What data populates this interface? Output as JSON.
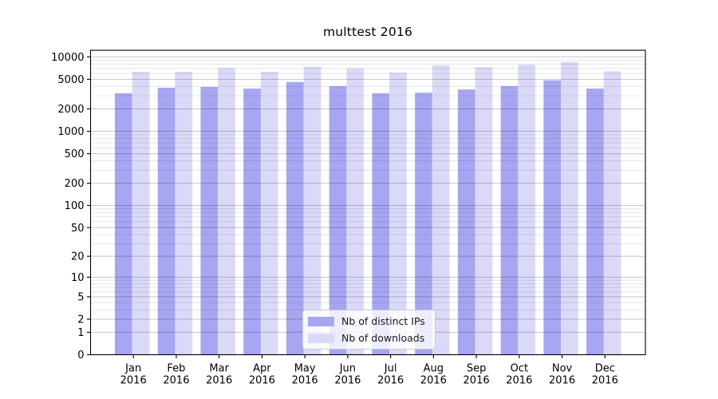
{
  "chart_data": {
    "type": "bar",
    "title": "multtest 2016",
    "y_scale": "log1p",
    "ylim": [
      0,
      12270
    ],
    "y_ticks": [
      0,
      1,
      2,
      5,
      10,
      20,
      50,
      100,
      200,
      500,
      1000,
      2000,
      5000,
      10000
    ],
    "categories": [
      "Jan",
      "Feb",
      "Mar",
      "Apr",
      "May",
      "Jun",
      "Jul",
      "Aug",
      "Sep",
      "Oct",
      "Nov",
      "Dec"
    ],
    "x_year": "2016",
    "grid": true,
    "legend_position": "lower center",
    "series": [
      {
        "name": "Nb of distinct IPs",
        "color": "#a6a6f2",
        "values": [
          3250,
          3850,
          3950,
          3750,
          4600,
          4050,
          3250,
          3300,
          3650,
          4050,
          4850,
          3750
        ]
      },
      {
        "name": "Nb of downloads",
        "color": "#dadaf8",
        "values": [
          6300,
          6300,
          7100,
          6300,
          7400,
          7000,
          6150,
          7700,
          7250,
          7850,
          8550,
          6400
        ]
      }
    ]
  }
}
